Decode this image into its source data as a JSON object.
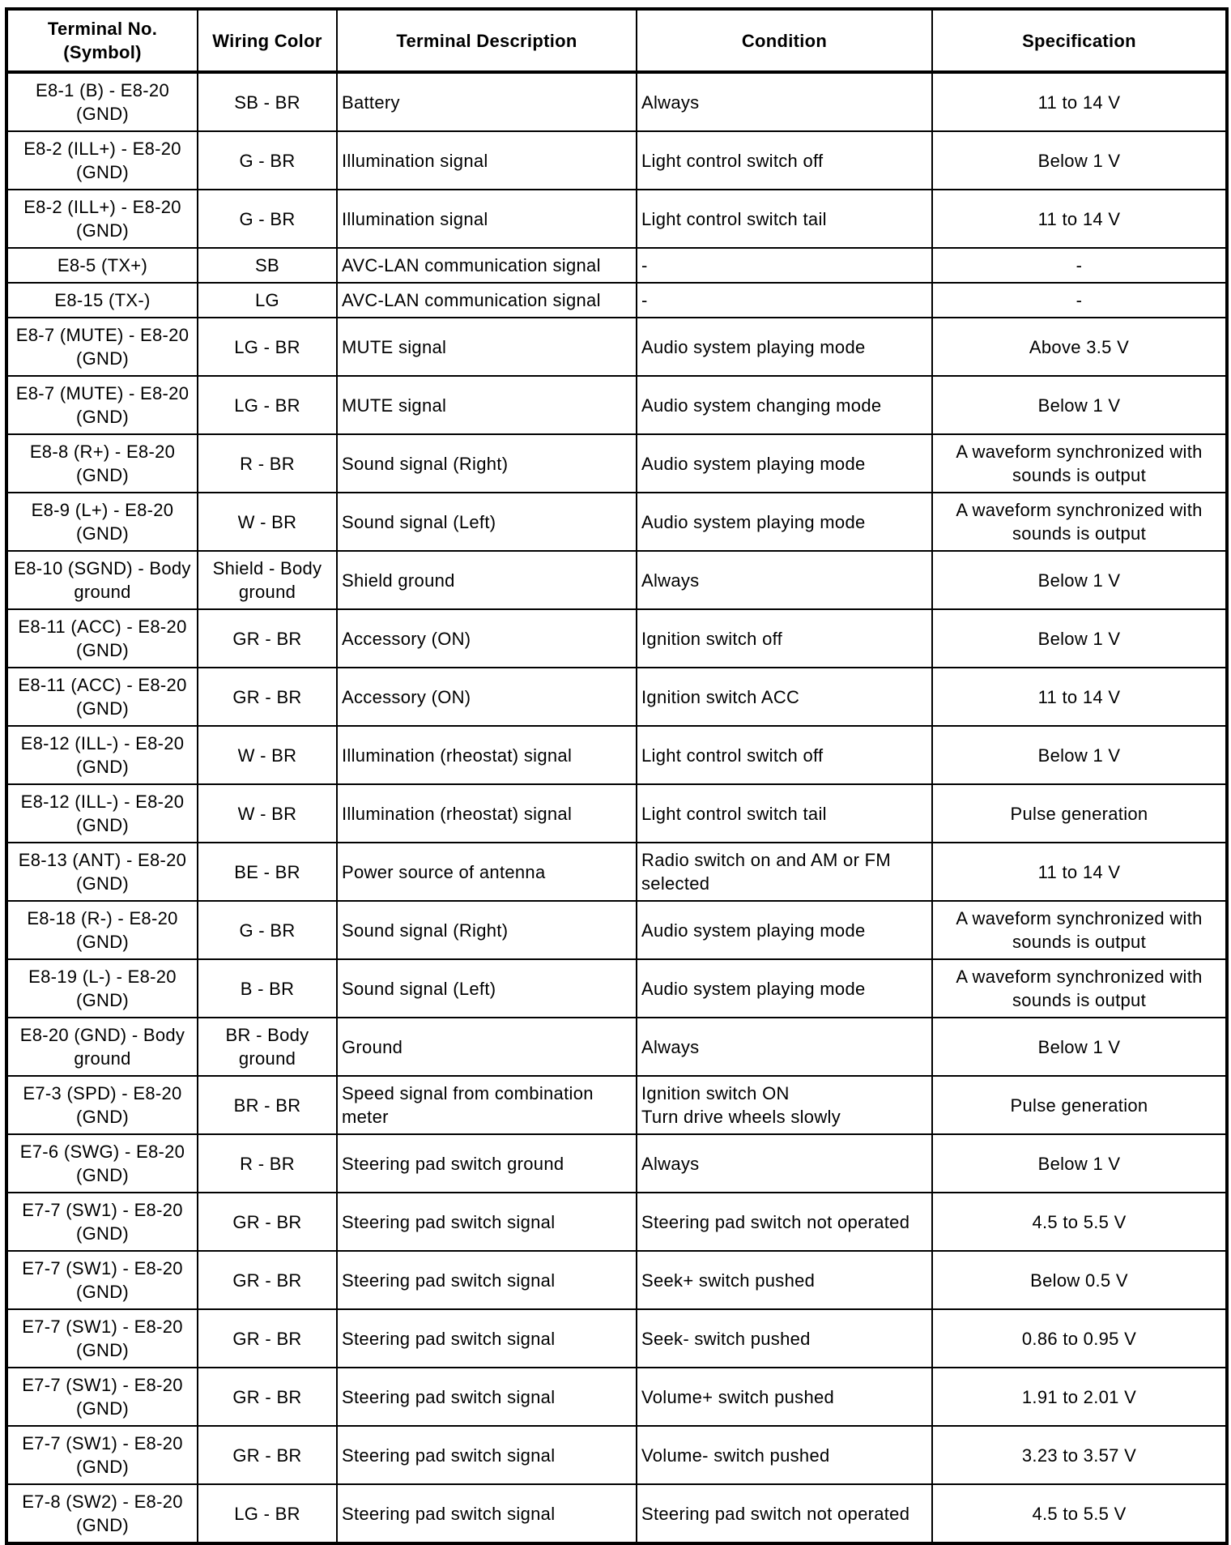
{
  "headers": [
    "Terminal No. (Symbol)",
    "Wiring Color",
    "Terminal Description",
    "Condition",
    "Specification"
  ],
  "rows": [
    [
      "E8-1 (B) - E8-20 (GND)",
      "SB - BR",
      "Battery",
      "Always",
      "11 to 14 V"
    ],
    [
      "E8-2 (ILL+) - E8-20 (GND)",
      "G - BR",
      "Illumination signal",
      "Light control switch off",
      "Below 1 V"
    ],
    [
      "E8-2 (ILL+) - E8-20 (GND)",
      "G - BR",
      "Illumination signal",
      "Light control switch tail",
      "11 to 14 V"
    ],
    [
      "E8-5 (TX+)",
      "SB",
      "AVC-LAN communication signal",
      "-",
      "-"
    ],
    [
      "E8-15 (TX-)",
      "LG",
      "AVC-LAN communication signal",
      "-",
      "-"
    ],
    [
      "E8-7 (MUTE) - E8-20 (GND)",
      "LG - BR",
      "MUTE signal",
      "Audio system playing mode",
      "Above 3.5 V"
    ],
    [
      "E8-7 (MUTE) - E8-20 (GND)",
      "LG - BR",
      "MUTE signal",
      "Audio system changing mode",
      "Below 1 V"
    ],
    [
      "E8-8 (R+) - E8-20 (GND)",
      "R - BR",
      "Sound signal (Right)",
      "Audio system playing mode",
      "A waveform synchronized with sounds is output"
    ],
    [
      "E8-9 (L+) - E8-20 (GND)",
      "W - BR",
      "Sound signal (Left)",
      "Audio system playing mode",
      "A waveform synchronized with sounds is output"
    ],
    [
      "E8-10 (SGND) - Body ground",
      "Shield - Body ground",
      "Shield ground",
      "Always",
      "Below 1 V"
    ],
    [
      "E8-11 (ACC) - E8-20 (GND)",
      "GR - BR",
      "Accessory (ON)",
      "Ignition switch off",
      "Below 1 V"
    ],
    [
      "E8-11 (ACC) - E8-20 (GND)",
      "GR - BR",
      "Accessory (ON)",
      "Ignition switch ACC",
      "11 to 14 V"
    ],
    [
      "E8-12 (ILL-) - E8-20 (GND)",
      "W - BR",
      "Illumination (rheostat) signal",
      "Light control switch off",
      "Below 1 V"
    ],
    [
      "E8-12 (ILL-) - E8-20 (GND)",
      "W - BR",
      "Illumination (rheostat) signal",
      "Light control switch tail",
      "Pulse generation"
    ],
    [
      "E8-13 (ANT) - E8-20 (GND)",
      "BE - BR",
      "Power source of antenna",
      "Radio switch on and AM or FM selected",
      "11 to 14 V"
    ],
    [
      "E8-18 (R-) - E8-20 (GND)",
      "G - BR",
      "Sound signal (Right)",
      "Audio system playing mode",
      "A waveform synchronized with sounds is output"
    ],
    [
      "E8-19 (L-) - E8-20 (GND)",
      "B - BR",
      "Sound signal (Left)",
      "Audio system playing mode",
      "A waveform synchronized with sounds is output"
    ],
    [
      "E8-20 (GND) - Body ground",
      "BR - Body ground",
      "Ground",
      "Always",
      "Below 1 V"
    ],
    [
      "E7-3 (SPD) - E8-20 (GND)",
      "BR - BR",
      "Speed signal from combination meter",
      "Ignition switch ON\nTurn drive wheels slowly",
      "Pulse generation"
    ],
    [
      "E7-6 (SWG) - E8-20 (GND)",
      "R - BR",
      "Steering pad switch ground",
      "Always",
      "Below 1 V"
    ],
    [
      "E7-7 (SW1) - E8-20 (GND)",
      "GR - BR",
      "Steering pad switch signal",
      "Steering pad switch not operated",
      "4.5 to 5.5 V"
    ],
    [
      "E7-7 (SW1) - E8-20 (GND)",
      "GR - BR",
      "Steering pad switch signal",
      "Seek+ switch pushed",
      "Below 0.5 V"
    ],
    [
      "E7-7 (SW1) - E8-20 (GND)",
      "GR - BR",
      "Steering pad switch signal",
      "Seek- switch pushed",
      "0.86 to 0.95 V"
    ],
    [
      "E7-7 (SW1) - E8-20 (GND)",
      "GR - BR",
      "Steering pad switch signal",
      "Volume+ switch pushed",
      "1.91 to 2.01 V"
    ],
    [
      "E7-7 (SW1) - E8-20 (GND)",
      "GR - BR",
      "Steering pad switch signal",
      "Volume- switch pushed",
      "3.23 to 3.57 V"
    ],
    [
      "E7-8 (SW2) - E8-20 (GND)",
      "LG - BR",
      "Steering pad switch signal",
      "Steering pad switch not operated",
      "4.5 to 5.5 V"
    ]
  ]
}
